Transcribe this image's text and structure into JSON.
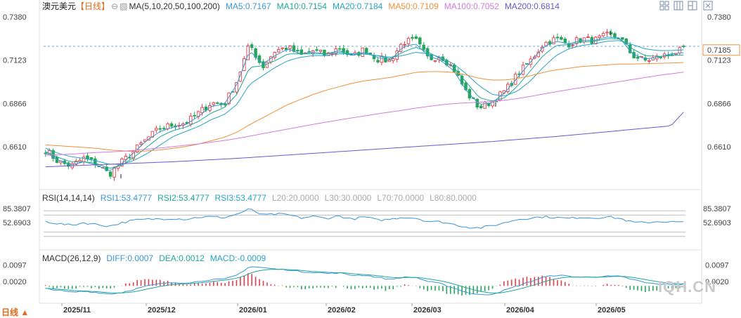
{
  "main_header": {
    "symbol": "澳元美元",
    "period_tag": "【日线】",
    "ma_label": "MA(5,10,20,50,100,200)",
    "ma_values": [
      {
        "text": "MA5:0.7167",
        "color": "#3a95d8"
      },
      {
        "text": "MA10:0.7154",
        "color": "#1fa89a"
      },
      {
        "text": "MA20:0.7184",
        "color": "#27a3c5"
      },
      {
        "text": "MA50:0.7109",
        "color": "#f0913a"
      },
      {
        "text": "MA100:0.7052",
        "color": "#d57be0"
      },
      {
        "text": "MA200:0.6814",
        "color": "#6b58c9"
      }
    ]
  },
  "rsi_header": {
    "label": "RSI(14,14,14)",
    "values": [
      {
        "text": "RSI1:53.4777",
        "color": "#3a95d8"
      },
      {
        "text": "RSI2:53.4777",
        "color": "#1fa89a"
      },
      {
        "text": "RSI3:53.4777",
        "color": "#27a3c5"
      },
      {
        "text": "L20:20.0000",
        "color": "#aaaaaa"
      },
      {
        "text": "L30:30.0000",
        "color": "#aaaaaa"
      },
      {
        "text": "L70:70.0000",
        "color": "#aaaaaa"
      },
      {
        "text": "L80:80.0000",
        "color": "#aaaaaa"
      }
    ]
  },
  "macd_header": {
    "label": "MACD(26,12,9)",
    "values": [
      {
        "text": "DIFF:0.0007",
        "color": "#3a95d8"
      },
      {
        "text": "DEA:0.0012",
        "color": "#1fa89a"
      },
      {
        "text": "MACD:-0.0009",
        "color": "#27a3c5"
      }
    ]
  },
  "period_button": "日线 ▲",
  "watermark": "IQH.CN",
  "colors": {
    "up": "#e0404a",
    "down": "#27a55a",
    "grid": "#cccccc",
    "current": "#f0913a"
  },
  "chart_data": {
    "type": "candlestick",
    "y_ticks_main": [
      "0.7380",
      "0.7123",
      "0.6866",
      "0.6610"
    ],
    "y_ticks_rsi": [
      "85.3807",
      "52.6903"
    ],
    "y_ticks_macd": [
      "0.0097",
      "0.0020"
    ],
    "x_labels": [
      "2025/11",
      "2025/12",
      "2026/01",
      "2026/02",
      "2026/03",
      "2026/04",
      "2026/05"
    ],
    "current_price": "0.7185",
    "annotations": {
      "high": "0.7277",
      "mid_low": "0.6832",
      "low": "0.6420"
    },
    "ylim_main": [
      0.6405,
      0.7405
    ],
    "ylim_rsi": [
      0,
      100
    ],
    "ylim_macd": [
      -0.0048,
      0.0115
    ],
    "rsi_levels": [
      20,
      30,
      70,
      80
    ],
    "close_anchors": [
      0.659,
      0.652,
      0.6495,
      0.654,
      0.651,
      0.6445,
      0.652,
      0.659,
      0.666,
      0.672,
      0.674,
      0.675,
      0.681,
      0.687,
      0.686,
      0.7,
      0.722,
      0.708,
      0.718,
      0.72,
      0.715,
      0.718,
      0.715,
      0.72,
      0.714,
      0.719,
      0.713,
      0.712,
      0.723,
      0.724,
      0.713,
      0.715,
      0.707,
      0.693,
      0.684,
      0.688,
      0.694,
      0.704,
      0.712,
      0.722,
      0.725,
      0.722,
      0.725,
      0.724,
      0.727,
      0.726,
      0.715,
      0.712,
      0.714,
      0.716,
      0.7185
    ],
    "rsi_anchors": [
      55,
      50,
      46,
      52,
      48,
      44,
      52,
      58,
      60,
      61,
      62,
      60,
      65,
      66,
      64,
      72,
      84,
      70,
      72,
      71,
      63,
      67,
      62,
      68,
      60,
      66,
      58,
      60,
      65,
      63,
      55,
      54,
      48,
      42,
      40,
      45,
      52,
      60,
      63,
      66,
      64,
      62,
      65,
      63,
      66,
      62,
      53,
      52,
      55,
      54,
      53
    ],
    "diff_anchors": [
      -0.0012,
      -0.002,
      -0.003,
      -0.0025,
      -0.003,
      -0.0038,
      -0.003,
      -0.0015,
      0.0,
      0.001,
      0.0015,
      0.0015,
      0.002,
      0.003,
      0.003,
      0.005,
      0.009,
      0.0085,
      0.0078,
      0.0075,
      0.0066,
      0.0064,
      0.0058,
      0.006,
      0.005,
      0.005,
      0.004,
      0.003,
      0.004,
      0.004,
      0.002,
      0.001,
      -0.001,
      -0.003,
      -0.0042,
      -0.0038,
      -0.002,
      0.0,
      0.002,
      0.004,
      0.005,
      0.0045,
      0.004,
      0.0042,
      0.0045,
      0.0044,
      0.003,
      0.0015,
      0.0008,
      0.0007,
      0.0007
    ],
    "ma_anchor_values": {
      "ma5": [
        0.6575,
        0.653,
        0.65,
        0.652,
        0.65,
        0.6465,
        0.651,
        0.658,
        0.665,
        0.67,
        0.6725,
        0.674,
        0.679,
        0.685,
        0.686,
        0.698,
        0.718,
        0.71,
        0.715,
        0.719,
        0.716,
        0.717,
        0.716,
        0.718,
        0.715,
        0.717,
        0.714,
        0.712,
        0.72,
        0.722,
        0.715,
        0.712,
        0.706,
        0.694,
        0.686,
        0.687,
        0.693,
        0.702,
        0.711,
        0.72,
        0.7235,
        0.722,
        0.724,
        0.724,
        0.726,
        0.7255,
        0.716,
        0.713,
        0.714,
        0.716,
        0.7167
      ],
      "ma10": [
        0.658,
        0.6545,
        0.652,
        0.652,
        0.651,
        0.648,
        0.65,
        0.655,
        0.661,
        0.667,
        0.6705,
        0.6725,
        0.676,
        0.681,
        0.684,
        0.692,
        0.708,
        0.709,
        0.712,
        0.716,
        0.716,
        0.716,
        0.716,
        0.717,
        0.716,
        0.716,
        0.715,
        0.713,
        0.717,
        0.72,
        0.717,
        0.713,
        0.708,
        0.699,
        0.69,
        0.688,
        0.69,
        0.697,
        0.706,
        0.715,
        0.721,
        0.7215,
        0.723,
        0.7235,
        0.725,
        0.725,
        0.719,
        0.715,
        0.7145,
        0.715,
        0.7154
      ],
      "ma20": [
        0.66,
        0.657,
        0.655,
        0.654,
        0.6525,
        0.6505,
        0.6505,
        0.653,
        0.657,
        0.662,
        0.667,
        0.67,
        0.673,
        0.677,
        0.68,
        0.686,
        0.698,
        0.703,
        0.708,
        0.712,
        0.714,
        0.715,
        0.715,
        0.716,
        0.716,
        0.716,
        0.715,
        0.714,
        0.715,
        0.717,
        0.716,
        0.714,
        0.71,
        0.704,
        0.697,
        0.692,
        0.691,
        0.694,
        0.7,
        0.708,
        0.715,
        0.719,
        0.721,
        0.722,
        0.7235,
        0.724,
        0.7215,
        0.719,
        0.718,
        0.718,
        0.7184
      ],
      "ma50": [
        0.662,
        0.6615,
        0.661,
        0.6605,
        0.66,
        0.659,
        0.6585,
        0.658,
        0.6585,
        0.659,
        0.66,
        0.661,
        0.6625,
        0.6645,
        0.6665,
        0.6695,
        0.674,
        0.678,
        0.682,
        0.686,
        0.689,
        0.692,
        0.6945,
        0.6965,
        0.6985,
        0.7,
        0.701,
        0.702,
        0.7035,
        0.705,
        0.7055,
        0.7055,
        0.705,
        0.7035,
        0.7015,
        0.7005,
        0.7005,
        0.7015,
        0.703,
        0.705,
        0.7065,
        0.7075,
        0.7085,
        0.709,
        0.7095,
        0.71,
        0.71,
        0.7102,
        0.7104,
        0.7106,
        0.7109
      ],
      "ma100": [
        0.656,
        0.6562,
        0.6565,
        0.657,
        0.6575,
        0.6578,
        0.6582,
        0.6588,
        0.6595,
        0.6602,
        0.661,
        0.6618,
        0.6626,
        0.6636,
        0.6646,
        0.6658,
        0.6672,
        0.6686,
        0.67,
        0.6714,
        0.6728,
        0.6742,
        0.6755,
        0.6768,
        0.678,
        0.6792,
        0.6804,
        0.6815,
        0.6826,
        0.6838,
        0.6848,
        0.6858,
        0.6865,
        0.687,
        0.6873,
        0.6878,
        0.6885,
        0.6895,
        0.6908,
        0.6922,
        0.6935,
        0.6948,
        0.696,
        0.6972,
        0.6984,
        0.6996,
        0.7008,
        0.702,
        0.7032,
        0.7042,
        0.7052
      ],
      "ma200": [
        0.649,
        0.6493,
        0.6496,
        0.6499,
        0.6502,
        0.6505,
        0.6508,
        0.6511,
        0.6514,
        0.6517,
        0.652,
        0.6524,
        0.6528,
        0.6532,
        0.6536,
        0.654,
        0.6545,
        0.655,
        0.6555,
        0.656,
        0.6565,
        0.657,
        0.6575,
        0.658,
        0.6585,
        0.659,
        0.6595,
        0.66,
        0.6605,
        0.661,
        0.6615,
        0.662,
        0.6625,
        0.663,
        0.6635,
        0.664,
        0.6646,
        0.6652,
        0.6658,
        0.6664,
        0.667,
        0.6677,
        0.6684,
        0.6691,
        0.6698,
        0.6705,
        0.6712,
        0.6719,
        0.6726,
        0.6733,
        0.6814
      ]
    }
  }
}
